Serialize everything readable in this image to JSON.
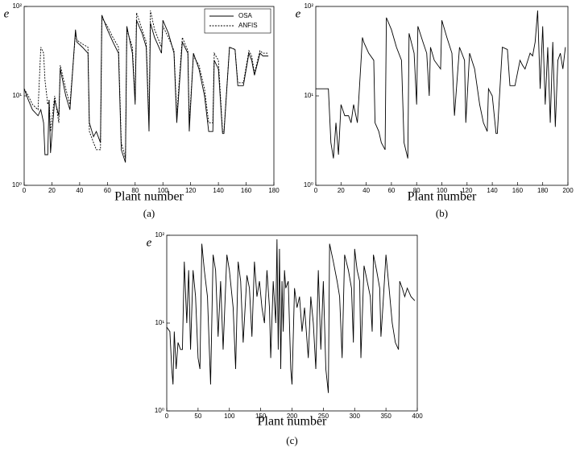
{
  "chart_data": [
    {
      "type": "line",
      "caption": "(a)",
      "xlabel": "Plant number",
      "ylabel": "e",
      "log_scale": true,
      "legend": "upper right",
      "xlim": [
        0,
        180
      ],
      "xticks": [
        0,
        20,
        40,
        60,
        80,
        100,
        120,
        140,
        160,
        180
      ],
      "ylim": [
        1,
        100
      ],
      "yticks": [
        {
          "value": 1,
          "label": "10⁰"
        },
        {
          "value": 10,
          "label": "10¹"
        },
        {
          "value": 100,
          "label": "10²"
        }
      ],
      "x": [
        0,
        3,
        6,
        10,
        12,
        14,
        15,
        17,
        18,
        19,
        22,
        25,
        26,
        30,
        33,
        37,
        38,
        42,
        46,
        47,
        50,
        52,
        55,
        56,
        60,
        64,
        68,
        70,
        73,
        74,
        78,
        80,
        81,
        85,
        88,
        90,
        91,
        94,
        99,
        100,
        104,
        108,
        110,
        114,
        118,
        119,
        122,
        126,
        130,
        133,
        136,
        137,
        140,
        143,
        144,
        148,
        152,
        154,
        158,
        162,
        164,
        166,
        170,
        172,
        176
      ],
      "series": [
        {
          "name": "OSA",
          "color": "#000000",
          "style": "solid",
          "values": [
            12,
            9,
            7,
            6,
            7,
            5,
            2.2,
            2.2,
            9,
            2.3,
            9,
            6,
            20,
            10,
            7,
            55,
            40,
            35,
            30,
            5,
            3.5,
            4,
            3,
            80,
            55,
            40,
            30,
            2.5,
            1.8,
            60,
            30,
            8,
            70,
            50,
            35,
            4,
            65,
            45,
            30,
            70,
            50,
            30,
            5,
            40,
            30,
            4,
            30,
            20,
            10,
            4,
            4,
            25,
            20,
            3.8,
            3.8,
            35,
            33,
            13,
            13,
            30,
            25,
            17,
            30,
            28,
            28
          ]
        },
        {
          "name": "ANFIS",
          "color": "#000000",
          "style": "dotted",
          "values": [
            12,
            10,
            8,
            7,
            35,
            30,
            15,
            8,
            9,
            4,
            10,
            5,
            22,
            12,
            8,
            50,
            42,
            38,
            35,
            4,
            3,
            2.5,
            2.5,
            75,
            60,
            45,
            35,
            3,
            2,
            55,
            35,
            9,
            85,
            55,
            40,
            5,
            90,
            55,
            35,
            60,
            45,
            32,
            6,
            45,
            32,
            5,
            28,
            22,
            12,
            5,
            5,
            30,
            25,
            4,
            4,
            35,
            33,
            14,
            14,
            32,
            28,
            18,
            32,
            30,
            30
          ]
        }
      ]
    },
    {
      "type": "line",
      "caption": "(b)",
      "xlabel": "Plant number",
      "ylabel": "e",
      "log_scale": true,
      "xlim": [
        0,
        200
      ],
      "xticks": [
        0,
        20,
        40,
        60,
        80,
        100,
        120,
        140,
        160,
        180,
        200
      ],
      "ylim": [
        1,
        100
      ],
      "yticks": [
        {
          "value": 1,
          "label": "10⁰"
        },
        {
          "value": 10,
          "label": "10¹"
        },
        {
          "value": 100,
          "label": "10²"
        }
      ],
      "x": [
        0,
        10,
        12,
        14,
        16,
        18,
        20,
        23,
        26,
        28,
        30,
        33,
        37,
        38,
        42,
        46,
        47,
        50,
        52,
        55,
        56,
        60,
        64,
        68,
        70,
        73,
        74,
        78,
        80,
        81,
        85,
        88,
        90,
        91,
        94,
        99,
        100,
        104,
        108,
        110,
        114,
        118,
        119,
        122,
        126,
        130,
        133,
        136,
        137,
        140,
        143,
        144,
        148,
        152,
        154,
        158,
        162,
        164,
        166,
        170,
        172,
        174,
        176,
        178,
        180,
        182,
        184,
        186,
        188,
        190,
        192,
        194,
        196,
        198
      ],
      "series": [
        {
          "color": "#000000",
          "style": "solid",
          "values": [
            12,
            12,
            3,
            2,
            5,
            2.2,
            8,
            6,
            6,
            5,
            8,
            5,
            45,
            40,
            30,
            25,
            5,
            4,
            3,
            2.5,
            75,
            55,
            35,
            25,
            3,
            2,
            50,
            30,
            8,
            60,
            40,
            30,
            10,
            35,
            25,
            20,
            70,
            45,
            30,
            6,
            35,
            25,
            5,
            30,
            20,
            8,
            5,
            4,
            12,
            10,
            3.8,
            3.8,
            35,
            33,
            13,
            13,
            25,
            22,
            20,
            30,
            28,
            40,
            90,
            12,
            60,
            8,
            35,
            5,
            40,
            4.5,
            25,
            30,
            20,
            35
          ]
        }
      ]
    },
    {
      "type": "line",
      "caption": "(c)",
      "xlabel": "Plant number",
      "ylabel": "e",
      "log_scale": true,
      "xlim": [
        0,
        400
      ],
      "xticks": [
        0,
        50,
        100,
        150,
        200,
        250,
        300,
        350,
        400
      ],
      "ylim": [
        1,
        100
      ],
      "yticks": [
        {
          "value": 1,
          "label": "10⁰"
        },
        {
          "value": 10,
          "label": "10¹"
        },
        {
          "value": 100,
          "label": "10²"
        }
      ],
      "x": [
        0,
        5,
        8,
        10,
        12,
        15,
        18,
        22,
        25,
        28,
        32,
        35,
        38,
        42,
        46,
        50,
        53,
        56,
        60,
        65,
        70,
        74,
        78,
        82,
        86,
        90,
        96,
        100,
        106,
        110,
        114,
        118,
        122,
        128,
        132,
        136,
        140,
        144,
        148,
        152,
        156,
        160,
        164,
        166,
        170,
        174,
        176,
        178,
        180,
        182,
        184,
        186,
        188,
        190,
        194,
        198,
        200,
        204,
        208,
        212,
        216,
        220,
        226,
        230,
        234,
        238,
        242,
        246,
        250,
        254,
        258,
        260,
        266,
        272,
        276,
        280,
        284,
        290,
        295,
        298,
        300,
        304,
        308,
        310,
        315,
        320,
        325,
        328,
        330,
        335,
        340,
        342,
        345,
        350,
        355,
        360,
        365,
        370,
        372,
        376,
        380,
        384,
        390,
        396
      ],
      "series": [
        {
          "color": "#000000",
          "style": "solid",
          "values": [
            9,
            8,
            3,
            2,
            8,
            3,
            6,
            5,
            5,
            50,
            10,
            40,
            5,
            40,
            20,
            4,
            3,
            80,
            40,
            20,
            2,
            60,
            40,
            7,
            30,
            5,
            60,
            40,
            15,
            3,
            50,
            30,
            6,
            35,
            25,
            7,
            50,
            20,
            30,
            15,
            10,
            40,
            15,
            4,
            30,
            10,
            90,
            5,
            70,
            3,
            30,
            8,
            40,
            25,
            30,
            3,
            2,
            25,
            15,
            20,
            8,
            15,
            4,
            20,
            10,
            3,
            40,
            5,
            30,
            3,
            1.6,
            80,
            50,
            30,
            20,
            4,
            60,
            40,
            25,
            6,
            70,
            40,
            30,
            4,
            45,
            30,
            20,
            8,
            60,
            40,
            25,
            7,
            15,
            60,
            25,
            10,
            6,
            5,
            30,
            25,
            20,
            25,
            20,
            18
          ]
        }
      ]
    }
  ]
}
